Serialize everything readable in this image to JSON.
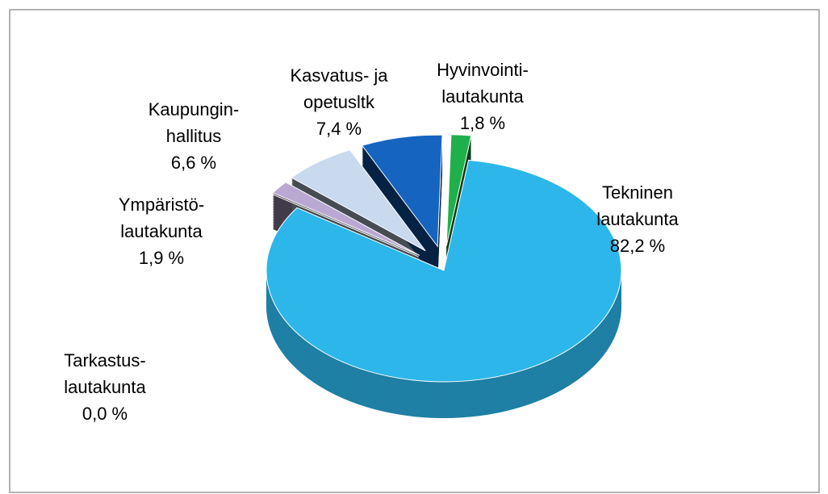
{
  "chart_data": {
    "type": "pie",
    "categories": [
      [
        "Tekninen",
        "lautakunta"
      ],
      [
        "Tarkastus-",
        "lautakunta"
      ],
      [
        "Ympäristö-",
        "lautakunta"
      ],
      [
        "Kaupungin-",
        "hallitus"
      ],
      [
        "Kasvatus- ja",
        "opetusltk"
      ],
      [
        "Hyvinvointi-",
        "lautakunta"
      ]
    ],
    "values": [
      82.2,
      0.0,
      1.9,
      6.6,
      7.4,
      1.8
    ],
    "value_labels": [
      "82,2 %",
      "0,0 %",
      "1,9 %",
      "6,6 %",
      "7,4 %",
      "1,8 %"
    ],
    "colors": [
      "#2cb6ea",
      "#8a8a9a",
      "#b9a9d2",
      "#c9d9ee",
      "#1565c0",
      "#1fb04c"
    ]
  }
}
